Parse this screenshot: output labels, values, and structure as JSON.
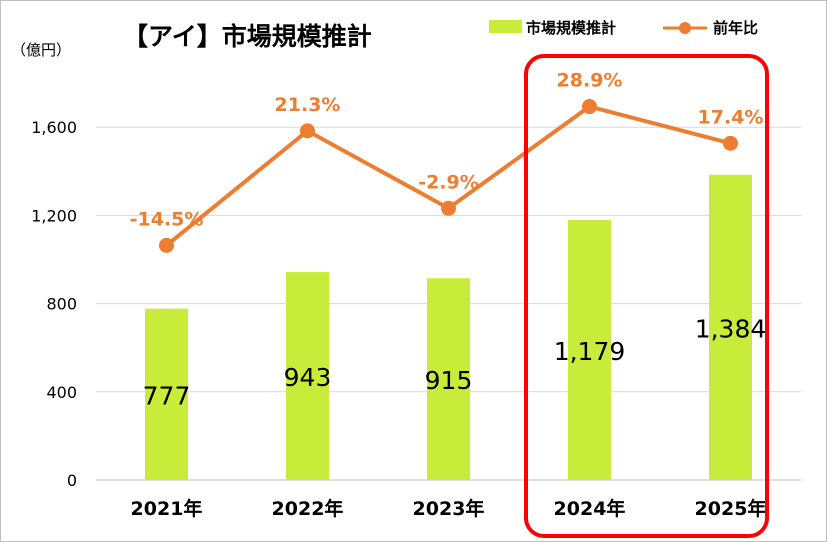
{
  "chart_data": {
    "type": "bar",
    "title": "【アイ】市場規模推計",
    "unit_label": "（億円）",
    "categories": [
      "2021年",
      "2022年",
      "2023年",
      "2024年",
      "2025年"
    ],
    "series": [
      {
        "name": "市場規模推計",
        "kind": "bar",
        "axis": "left",
        "values": [
          777,
          943,
          915,
          1179,
          1384
        ],
        "labels": [
          "777",
          "943",
          "915",
          "1,179",
          "1,384"
        ],
        "color": "#c9ec3a"
      },
      {
        "name": "前年比",
        "kind": "line",
        "axis": "right",
        "values": [
          -14.5,
          21.3,
          -2.9,
          28.9,
          17.4
        ],
        "labels": [
          "-14.5%",
          "21.3%",
          "-2.9%",
          "28.9%",
          "17.4%"
        ],
        "color": "#ed7d31"
      }
    ],
    "ylim": [
      0,
      1700
    ],
    "y_ticks": [
      0,
      400,
      800,
      1200,
      1600
    ],
    "y_tick_labels": [
      "0",
      "400",
      "800",
      "1,200",
      "1,600"
    ],
    "y2_hidden": true,
    "grid": true,
    "legend_position": "top-right",
    "highlight": {
      "categories": [
        "2024年",
        "2025年"
      ],
      "color": "#ff0000"
    }
  }
}
